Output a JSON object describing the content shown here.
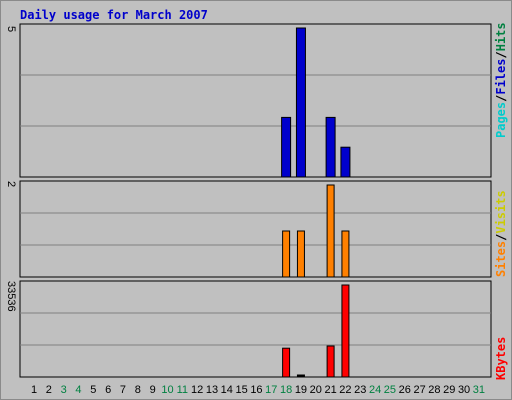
{
  "title": "Daily usage for March 2007",
  "colors": {
    "pages": "#00cccc",
    "files": "#0000cc",
    "hits": "#008040",
    "sites": "#ff8000",
    "visits": "#cccc00",
    "kbytes": "#ff0000",
    "plot_bg": "#c0c0c0",
    "frame": "#c0c0c0",
    "weekend_label": "#008040"
  },
  "legend": {
    "top": {
      "pages": "Pages",
      "sep1": "/",
      "files": "Files",
      "sep2": "/",
      "hits": "Hits"
    },
    "middle": {
      "sites": "Sites",
      "sep": "/",
      "visits": "Visits"
    },
    "bottom": {
      "kbytes": "KBytes"
    }
  },
  "chart_data": {
    "type": "bar",
    "title": "Daily usage for March 2007",
    "categories": [
      "1",
      "2",
      "3",
      "4",
      "5",
      "6",
      "7",
      "8",
      "9",
      "10",
      "11",
      "12",
      "13",
      "14",
      "15",
      "16",
      "17",
      "18",
      "19",
      "20",
      "21",
      "22",
      "23",
      "24",
      "25",
      "26",
      "27",
      "28",
      "29",
      "30",
      "31"
    ],
    "weekend_days": [
      "3",
      "4",
      "10",
      "11",
      "17",
      "18",
      "24",
      "25",
      "31"
    ],
    "panels": [
      {
        "name": "hits-files-pages",
        "ymax_label": "5",
        "ylim": [
          0,
          5
        ],
        "series": [
          {
            "name": "Files",
            "color": "#0000cc",
            "values": [
              0,
              0,
              0,
              0,
              0,
              0,
              0,
              0,
              0,
              0,
              0,
              0,
              0,
              0,
              0,
              0,
              0,
              2,
              5,
              0,
              2,
              1,
              0,
              0,
              0,
              0,
              0,
              0,
              0,
              0,
              0
            ]
          }
        ]
      },
      {
        "name": "visits-sites",
        "ymax_label": "2",
        "ylim": [
          0,
          2
        ],
        "series": [
          {
            "name": "Sites",
            "color": "#ff8000",
            "values": [
              0,
              0,
              0,
              0,
              0,
              0,
              0,
              0,
              0,
              0,
              0,
              0,
              0,
              0,
              0,
              0,
              0,
              1,
              1,
              0,
              2,
              1,
              0,
              0,
              0,
              0,
              0,
              0,
              0,
              0,
              0
            ]
          }
        ]
      },
      {
        "name": "kbytes",
        "ymax_label": "33536",
        "ylim": [
          0,
          33536
        ],
        "series": [
          {
            "name": "KBytes",
            "color": "#ff0000",
            "values": [
              0,
              0,
              0,
              0,
              0,
              0,
              0,
              0,
              0,
              0,
              0,
              0,
              0,
              0,
              0,
              0,
              0,
              10500,
              600,
              0,
              11300,
              33536,
              0,
              0,
              0,
              0,
              0,
              0,
              0,
              0,
              0
            ]
          }
        ]
      }
    ]
  }
}
